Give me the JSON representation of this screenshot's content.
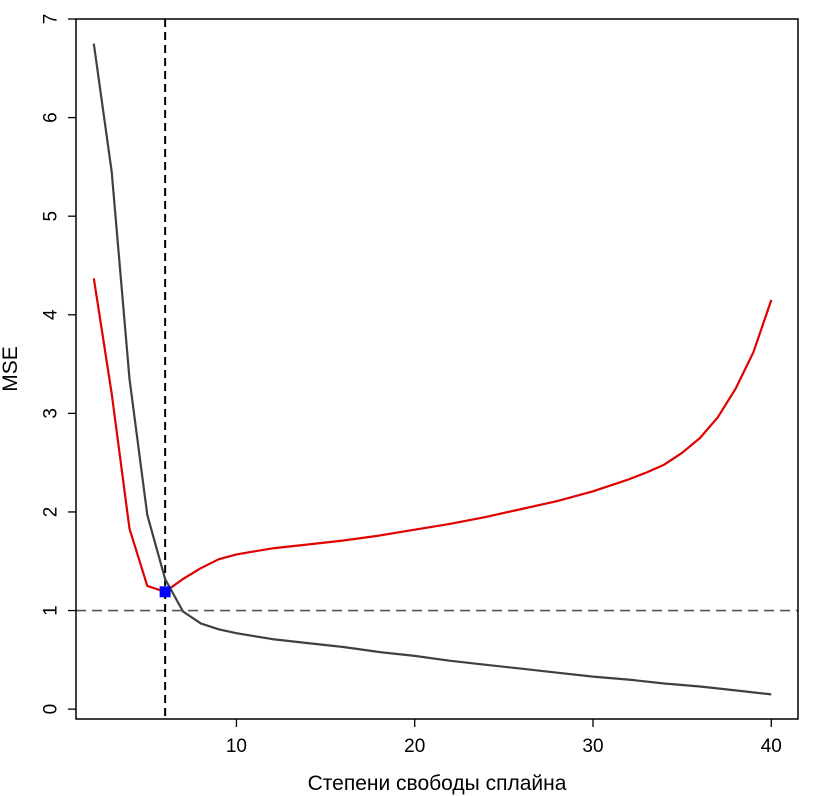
{
  "chart_data": {
    "type": "line",
    "title": "",
    "xlabel": "Степени свободы сплайна",
    "ylabel": "MSE",
    "xlim": [
      1,
      41.5
    ],
    "ylim": [
      -0.1,
      7
    ],
    "xticks": [
      10,
      20,
      30,
      40
    ],
    "yticks": [
      0,
      1,
      2,
      3,
      4,
      5,
      6,
      7
    ],
    "grid": false,
    "legend": "none",
    "series": [
      {
        "color": "#e00000",
        "x": [
          2,
          3,
          4,
          5,
          6,
          7,
          8,
          9,
          10,
          12,
          14,
          16,
          18,
          20,
          22,
          24,
          26,
          28,
          30,
          32,
          33,
          34,
          35,
          36,
          37,
          38,
          39,
          40
        ],
        "y": [
          4.37,
          3.2,
          1.83,
          1.25,
          1.19,
          1.32,
          1.43,
          1.52,
          1.57,
          1.63,
          1.67,
          1.71,
          1.76,
          1.82,
          1.88,
          1.95,
          2.03,
          2.11,
          2.21,
          2.33,
          2.4,
          2.48,
          2.6,
          2.75,
          2.96,
          3.25,
          3.62,
          4.15
        ]
      },
      {
        "color": "#404040",
        "x": [
          2,
          3,
          4,
          5,
          6,
          7,
          8,
          9,
          10,
          12,
          14,
          16,
          18,
          20,
          22,
          24,
          26,
          28,
          30,
          32,
          34,
          36,
          38,
          40
        ],
        "y": [
          6.75,
          5.45,
          3.35,
          1.97,
          1.32,
          0.99,
          0.87,
          0.81,
          0.77,
          0.71,
          0.67,
          0.63,
          0.58,
          0.54,
          0.49,
          0.45,
          0.41,
          0.37,
          0.33,
          0.3,
          0.26,
          0.23,
          0.19,
          0.15
        ]
      }
    ],
    "reference_lines": [
      {
        "orientation": "horizontal",
        "value": 1,
        "color": "#555555",
        "style": "dashed"
      },
      {
        "orientation": "vertical",
        "value": 6,
        "color": "#000000",
        "style": "dashed"
      }
    ],
    "marker": {
      "x": 6,
      "y": 1.19,
      "color": "#0000ff",
      "shape": "square"
    }
  }
}
